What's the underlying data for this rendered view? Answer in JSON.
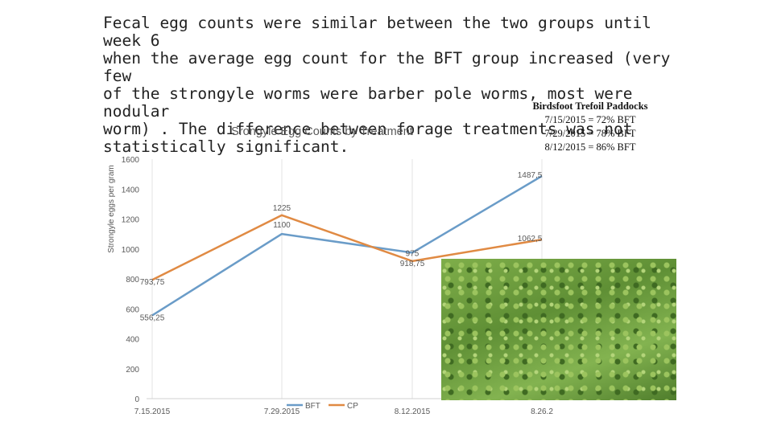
{
  "headline": "Fecal egg counts were similar between the two groups until week 6\nwhen the average egg count for the BFT group increased (very few\nof the strongyle worms were barber pole worms, most were nodular\nworm) . The difference between forage treatments was not\nstatistically significant.",
  "note": {
    "title": "Birdsfoot Trefoil Paddocks",
    "lines": [
      "7/15/2015 = 72% BFT",
      "7/29/2015 = 78% BFT",
      "8/12/2015 = 86% BFT"
    ]
  },
  "photo": {
    "icon": "clover-field-photo"
  },
  "chart_data": {
    "type": "line",
    "title": "Srongyle Egg Counts by Treatment",
    "ylabel": "Strongyle eggs per gram",
    "xlabel": "",
    "categories": [
      "7.15.2015",
      "7.29.2015",
      "8.12.2015",
      "8.26.2"
    ],
    "ylim": [
      0,
      1600
    ],
    "yticks": [
      0,
      200,
      400,
      600,
      800,
      1000,
      1200,
      1400,
      1600
    ],
    "grid": "vertical",
    "legend": "bottom-center",
    "series": [
      {
        "name": "BFT",
        "color": "#6a9cc8",
        "values": [
          556.25,
          1100,
          975,
          1487.5
        ],
        "labels": [
          "556,25",
          "1100",
          "975",
          "1487,5"
        ]
      },
      {
        "name": "CP",
        "color": "#e08a43",
        "values": [
          793.75,
          1225,
          918.75,
          1062.5
        ],
        "labels": [
          "793,75",
          "1225",
          "918,75",
          "1062,5"
        ]
      }
    ]
  }
}
